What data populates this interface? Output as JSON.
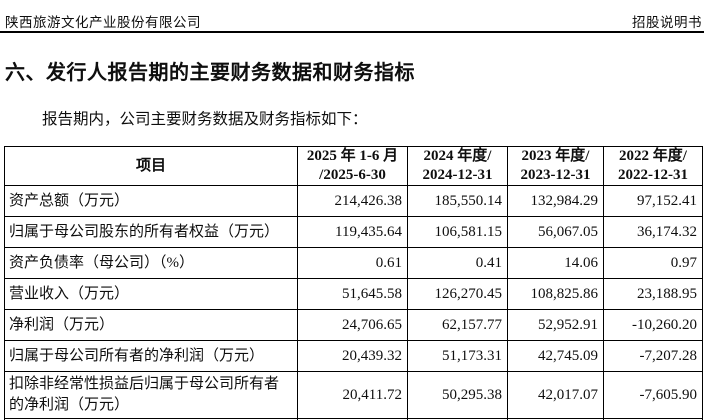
{
  "page_header": {
    "company": "陕西旅游文化产业股份有限公司",
    "doc_type": "招股说明书"
  },
  "section": {
    "title": "六、发行人报告期的主要财务数据和财务指标",
    "intro": "报告期内，公司主要财务数据及财务指标如下："
  },
  "table": {
    "header": {
      "item": "项目",
      "periods": [
        {
          "line1": "2025 年 1-6 月",
          "line2": "/2025-6-30"
        },
        {
          "line1": "2024 年度/",
          "line2": "2024-12-31"
        },
        {
          "line1": "2023 年度/",
          "line2": "2023-12-31"
        },
        {
          "line1": "2022 年度/",
          "line2": "2022-12-31"
        }
      ]
    },
    "rows": [
      {
        "label": "资产总额（万元）",
        "values": [
          "214,426.38",
          "185,550.14",
          "132,984.29",
          "97,152.41"
        ]
      },
      {
        "label": "归属于母公司股东的所有者权益（万元）",
        "values": [
          "119,435.64",
          "106,581.15",
          "56,067.05",
          "36,174.32"
        ]
      },
      {
        "label": "资产负债率（母公司）（%）",
        "values": [
          "0.61",
          "0.41",
          "14.06",
          "0.97"
        ]
      },
      {
        "label": "营业收入（万元）",
        "values": [
          "51,645.58",
          "126,270.45",
          "108,825.86",
          "23,188.95"
        ]
      },
      {
        "label": "净利润（万元）",
        "values": [
          "24,706.65",
          "62,157.77",
          "52,952.91",
          "-10,260.20"
        ]
      },
      {
        "label": "归属于母公司所有者的净利润（万元）",
        "values": [
          "20,439.32",
          "51,173.31",
          "42,745.09",
          "-7,207.28"
        ]
      },
      {
        "label": "扣除非经常性损益后归属于母公司所有者的净利润（万元）",
        "values": [
          "20,411.72",
          "50,295.38",
          "42,017.07",
          "-7,605.90"
        ]
      }
    ]
  },
  "colors": {
    "text": "#0e0e0e",
    "background": "#ffffff",
    "border": "#000000"
  }
}
